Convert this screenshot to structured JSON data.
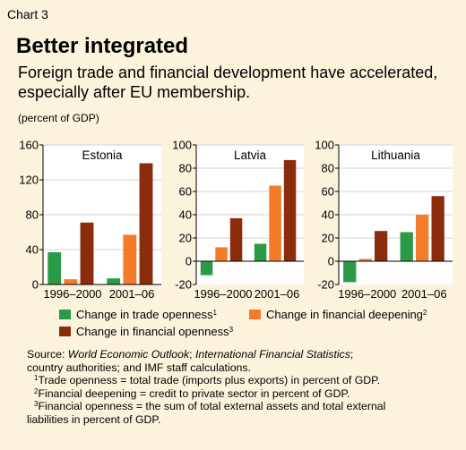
{
  "header": {
    "chart_label": "Chart 3",
    "title": "Better integrated",
    "subtitle_line1": "Foreign trade and financial development have accelerated,",
    "subtitle_line2": "especially after EU membership.",
    "unit": "(percent of GDP)"
  },
  "legend": [
    {
      "label": "Change in trade openness",
      "note": "1",
      "color": "#2b9a47"
    },
    {
      "label": "Change in financial deepening",
      "note": "2",
      "color": "#f47b2a"
    },
    {
      "label": "Change in financial openness",
      "note": "3",
      "color": "#8b2d0d"
    }
  ],
  "notes": {
    "source_prefix": "Source: ",
    "source_weo": "World Economic Outlook",
    "source_sep": "; ",
    "source_ifs": "International Financial Statistics",
    "source_rest": ";",
    "source_line2": "country authorities; and IMF staff calculations.",
    "fn1_mark": "1",
    "fn1": "Trade openness = total trade (imports plus exports) in percent of GDP.",
    "fn2_mark": "2",
    "fn2": "Financial deepening = credit to private sector in percent of GDP.",
    "fn3_mark": "3",
    "fn3_line1": "Financial openness = the sum of total external assets and total external",
    "fn3_line2": "liabilities in percent of GDP."
  },
  "chart_data": [
    {
      "type": "bar",
      "title": "Estonia",
      "categories": [
        "1996–2000",
        "2001–06"
      ],
      "ylim": [
        0,
        160
      ],
      "yticks": [
        0,
        40,
        80,
        120,
        160
      ],
      "series": [
        {
          "name": "Change in trade openness",
          "values": [
            37,
            7
          ]
        },
        {
          "name": "Change in financial deepening",
          "values": [
            6,
            57
          ]
        },
        {
          "name": "Change in financial openness",
          "values": [
            71,
            139
          ]
        }
      ]
    },
    {
      "type": "bar",
      "title": "Latvia",
      "categories": [
        "1996–2000",
        "2001–06"
      ],
      "ylim": [
        -20,
        100
      ],
      "yticks": [
        -20,
        0,
        20,
        40,
        60,
        80,
        100
      ],
      "series": [
        {
          "name": "Change in trade openness",
          "values": [
            -12,
            15
          ]
        },
        {
          "name": "Change in financial deepening",
          "values": [
            12,
            65
          ]
        },
        {
          "name": "Change in financial openness",
          "values": [
            37,
            87
          ]
        }
      ]
    },
    {
      "type": "bar",
      "title": "Lithuania",
      "categories": [
        "1996–2000",
        "2001–06"
      ],
      "ylim": [
        -20,
        100
      ],
      "yticks": [
        -20,
        0,
        20,
        40,
        60,
        80,
        100
      ],
      "series": [
        {
          "name": "Change in trade openness",
          "values": [
            -18,
            25
          ]
        },
        {
          "name": "Change in financial deepening",
          "values": [
            2,
            40
          ]
        },
        {
          "name": "Change in financial openness",
          "values": [
            26,
            56
          ]
        }
      ]
    }
  ]
}
